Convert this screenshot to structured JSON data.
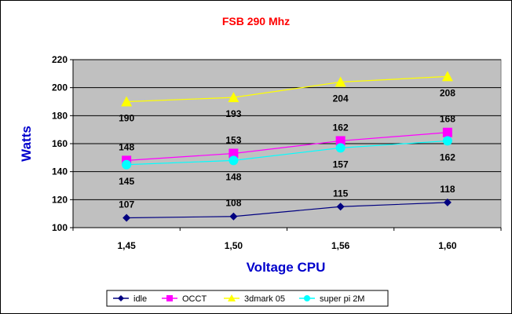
{
  "chart_data": {
    "type": "line",
    "title": "FSB 290 Mhz",
    "xlabel": "Voltage CPU",
    "ylabel": "Watts",
    "categories": [
      "1,45",
      "1,50",
      "1,56",
      "1,60"
    ],
    "ylim": [
      100,
      220
    ],
    "yticks": [
      "100",
      "120",
      "140",
      "160",
      "180",
      "200",
      "220"
    ],
    "grid": "horizontal",
    "legend_position": "bottom",
    "plot_background": "#c0c0c0",
    "title_color": "#ff0000",
    "axis_title_color": "#0000cc",
    "series": [
      {
        "name": "idle",
        "values": [
          107,
          108,
          115,
          118
        ],
        "color": "#000080",
        "marker": "diamond"
      },
      {
        "name": "OCCT",
        "values": [
          148,
          153,
          162,
          168
        ],
        "color": "#ff00ff",
        "marker": "square"
      },
      {
        "name": "3dmark 05",
        "values": [
          190,
          193,
          204,
          208
        ],
        "color": "#ffff00",
        "marker": "triangle"
      },
      {
        "name": "super pi 2M",
        "values": [
          145,
          148,
          157,
          162
        ],
        "color": "#00ffff",
        "marker": "circle"
      }
    ]
  }
}
